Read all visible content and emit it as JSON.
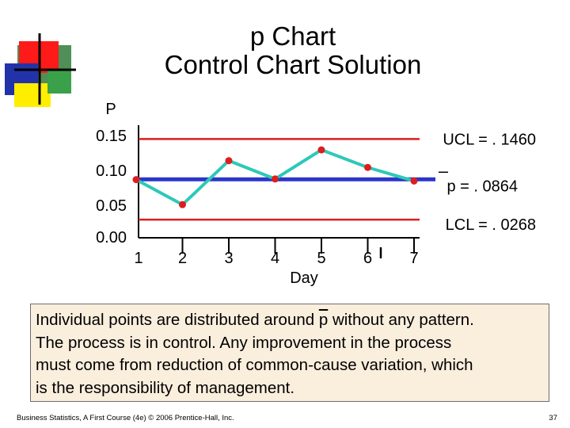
{
  "slide": {
    "title_line1": "p Chart",
    "title_line2": "Control Chart Solution",
    "caption_lines": [
      "Individual points are distributed around p without any pattern.",
      "The process is in control.  Any improvement in the process",
      "must come from reduction of common-cause variation, which",
      "is the responsibility of  management."
    ],
    "caption_line1_pre": "Individual points are distributed around ",
    "caption_line1_pbar": "p",
    "caption_line1_post": " without any pattern.",
    "footer_left": "Business Statistics, A First Course (4e) © 2006 Prentice-Hall, Inc.",
    "footer_right": "37"
  },
  "chart_data": {
    "type": "line",
    "ylabel": "P",
    "xlabel": "Day",
    "y_ticks": [
      "0.15",
      "0.10",
      "0.05",
      "0.00"
    ],
    "y_tick_values": [
      0.15,
      0.1,
      0.05,
      0.0
    ],
    "x_ticks": [
      "1",
      "2",
      "3",
      "4",
      "5",
      "6",
      "7"
    ],
    "x": [
      1,
      2,
      3,
      4,
      5,
      6,
      7
    ],
    "values": [
      0.086,
      0.049,
      0.114,
      0.087,
      0.13,
      0.104,
      0.084
    ],
    "ylim": [
      0.0,
      0.15
    ],
    "control_lines": [
      {
        "label": "UCL = . 1460",
        "value": 0.146,
        "color": "#d81e1e"
      },
      {
        "label": "p = . 0864",
        "value": 0.0864,
        "color": "#2a36c8"
      },
      {
        "label": "LCL = . 0268",
        "value": 0.0268,
        "color": "#d81e1e"
      }
    ],
    "colors": {
      "series": "#2ec8b8",
      "marker": "#dc1e1e",
      "ucl_lcl": "#d81e1e",
      "center": "#2a36c8"
    }
  }
}
